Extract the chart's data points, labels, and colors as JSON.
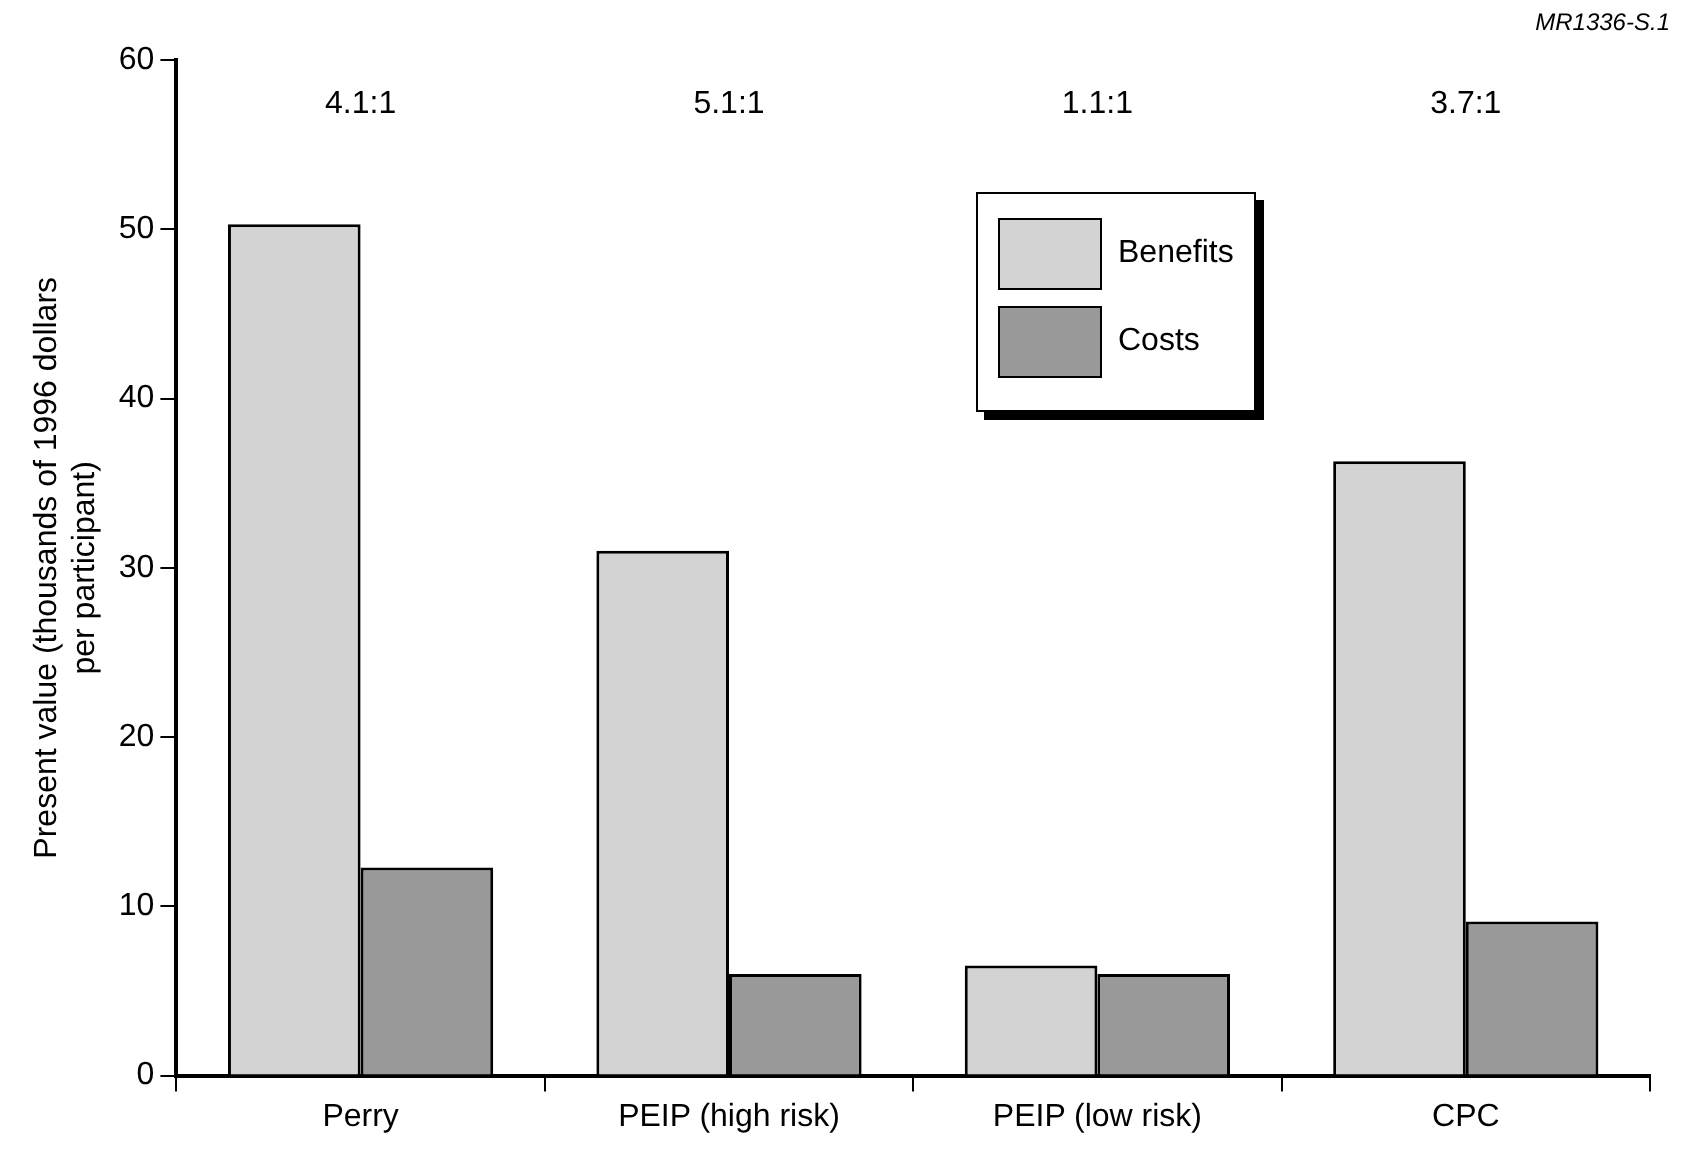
{
  "chart_data": {
    "type": "bar",
    "ylabel": "Present value (thousands of 1996 dollars\nper participant)",
    "categories": [
      "Perry",
      "PEIP (high risk)",
      "PEIP (low risk)",
      "CPC"
    ],
    "series": [
      {
        "name": "Benefits",
        "color": "#d3d3d3",
        "values": [
          50.3,
          31.0,
          6.5,
          36.3
        ]
      },
      {
        "name": "Costs",
        "color": "#999999",
        "values": [
          12.3,
          6.0,
          6.0,
          9.1
        ]
      }
    ],
    "ylim": [
      0,
      60
    ],
    "yticks": [
      0,
      10,
      20,
      30,
      40,
      50,
      60
    ],
    "grid": false,
    "legend": "top right",
    "annotations": [
      "4.1:1",
      "5.1:1",
      "1.1:1",
      "3.7:1",
      "MR1336-S.1"
    ]
  }
}
